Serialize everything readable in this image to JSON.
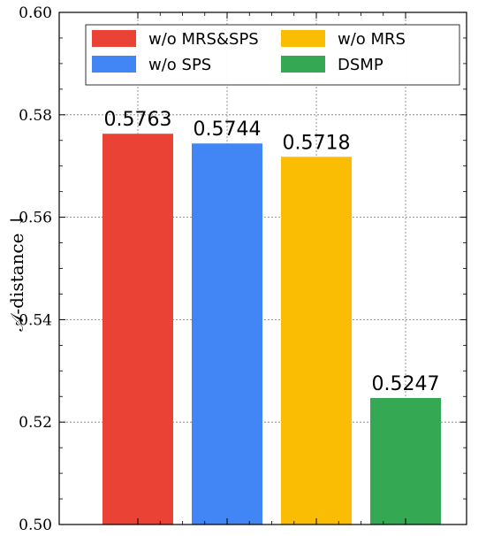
{
  "chart_data": {
    "type": "bar",
    "categories": [
      "w/o MRS&SPS",
      "w/o SPS",
      "w/o MRS",
      "DSMP"
    ],
    "values": [
      0.5763,
      0.5744,
      0.5718,
      0.5247
    ],
    "data_labels": [
      "0.5763",
      "0.5744",
      "0.5718",
      "0.5247"
    ],
    "colors": [
      "#ea4335",
      "#4285f4",
      "#fbbc04",
      "#34a853"
    ],
    "ylabel": "𝒜-distance ↓",
    "xlabel": "",
    "ylim": [
      0.5,
      0.6
    ],
    "yticks": [
      0.5,
      0.52,
      0.54,
      0.56,
      0.58,
      0.6
    ],
    "ytick_labels": [
      "0.50",
      "0.52",
      "0.54",
      "0.56",
      "0.58",
      "0.60"
    ],
    "grid": true,
    "legend": {
      "position": "top",
      "columns": 2,
      "entries": [
        "w/o MRS&SPS",
        "w/o MRS",
        "w/o SPS",
        "DSMP"
      ],
      "entry_colors": [
        "#ea4335",
        "#fbbc04",
        "#4285f4",
        "#34a853"
      ]
    }
  }
}
